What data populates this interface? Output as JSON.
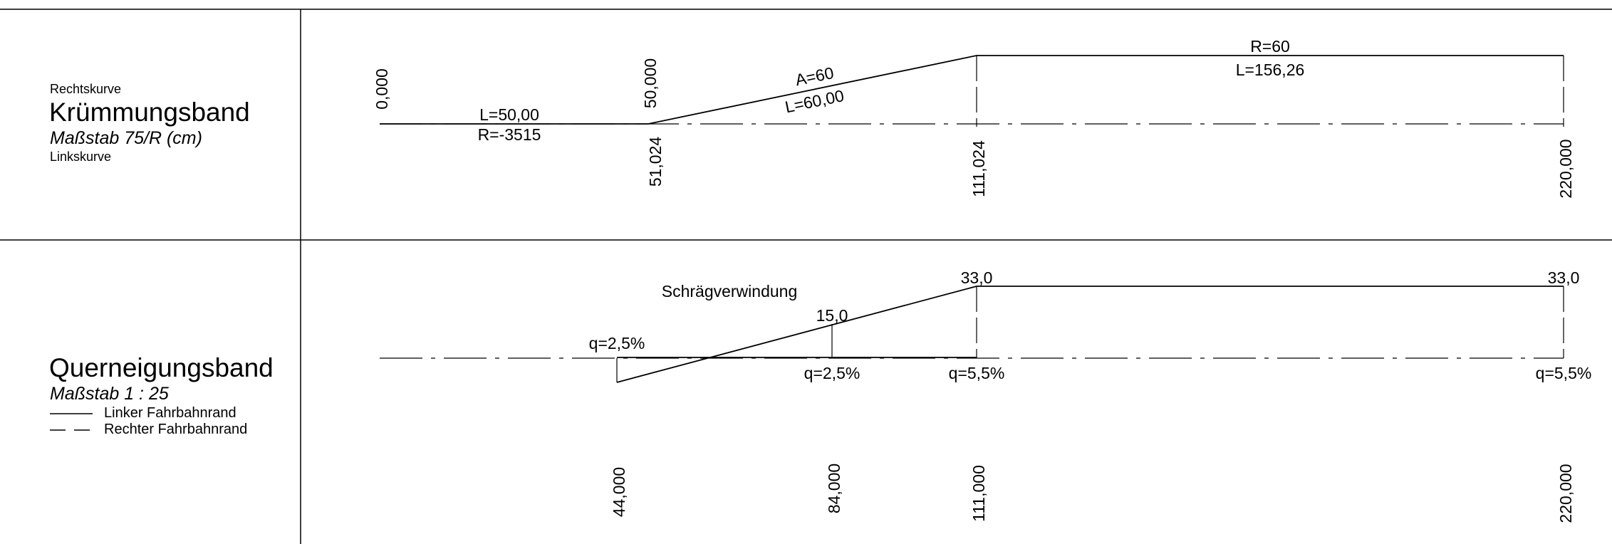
{
  "kruemmungsband": {
    "top_note": "Rechtskurve",
    "title": "Krümmungsband",
    "scale": "Maßstab 75/R (cm)",
    "bottom_note": "Linkskurve",
    "segments": {
      "straight_len": "L=50,00",
      "straight_radius": "R=-3515",
      "clothoid_param": "A=60",
      "clothoid_len": "L=60,00",
      "arc_radius": "R=60",
      "arc_len": "L=156,26"
    },
    "stations": {
      "s0": "0,000",
      "s50": "50,000",
      "s51": "51,024",
      "s111": "111,024",
      "s220": "220,000"
    }
  },
  "querneigungsband": {
    "title": "Querneigungsband",
    "scale": "Maßstab 1 : 25",
    "legend": {
      "left_edge": "Linker Fahrbahnrand",
      "right_edge": "Rechter Fahrbahnrand"
    },
    "transition_label": "Schrägverwindung",
    "values": {
      "v15": "15,0",
      "v33a": "33,0",
      "v33b": "33,0"
    },
    "slopes": {
      "q_start": "q=2,5%",
      "q_mid": "q=2,5%",
      "q_end1": "q=5,5%",
      "q_end2": "q=5,5%"
    },
    "stations": {
      "s44": "44,000",
      "s84": "84,000",
      "s111": "111,000",
      "s220": "220,000"
    }
  }
}
